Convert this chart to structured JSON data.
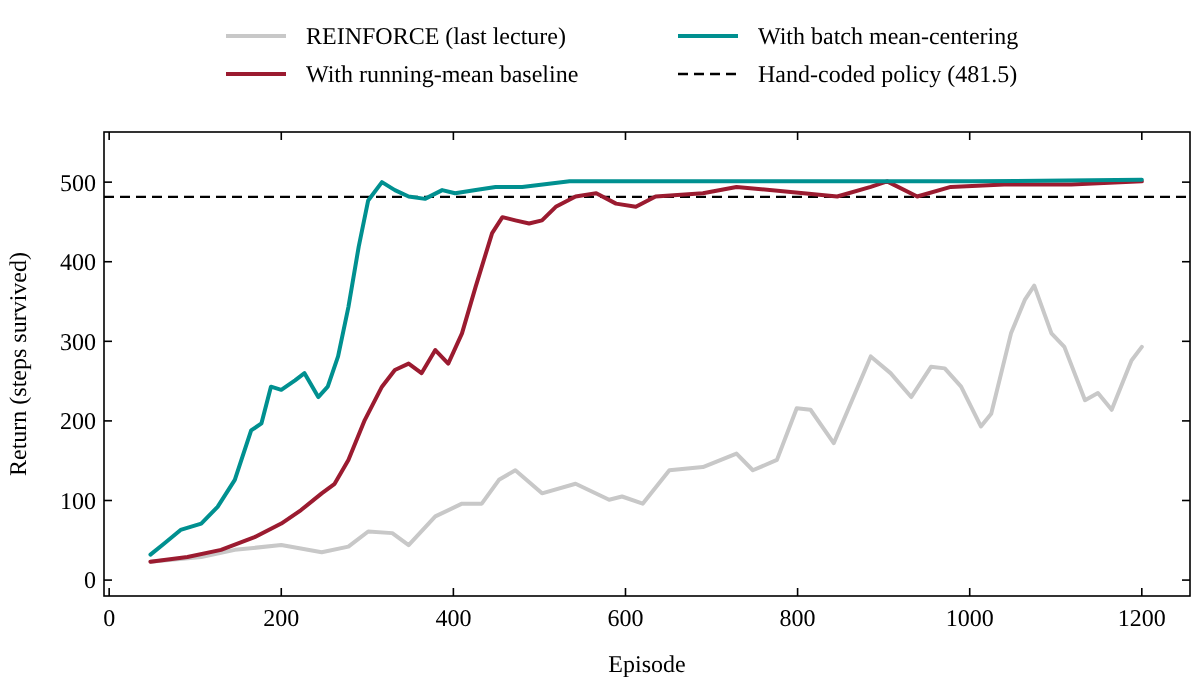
{
  "chart_data": {
    "type": "line",
    "xlabel": "Episode",
    "ylabel": "Return (steps survived)",
    "xlim": [
      -6,
      1256
    ],
    "ylim": [
      -20,
      563
    ],
    "xticks": [
      0,
      200,
      400,
      600,
      800,
      1000,
      1200
    ],
    "yticks": [
      0,
      100,
      200,
      300,
      400,
      500
    ],
    "legend": "top",
    "line_style": "solid",
    "marker": "none",
    "series": [
      {
        "name": "REINFORCE (last lecture)",
        "color": "#c8c8c8",
        "x": [
          48,
          107,
          146,
          200,
          247,
          278,
          301,
          329,
          348,
          379,
          410,
          433,
          453,
          472,
          503,
          542,
          581,
          596,
          620,
          651,
          690,
          729,
          748,
          776,
          799,
          815,
          842,
          885,
          908,
          932,
          955,
          971,
          990,
          1013,
          1025,
          1048,
          1064,
          1075,
          1095,
          1110,
          1134,
          1149,
          1165,
          1188,
          1200
        ],
        "values": [
          23,
          29,
          38,
          44,
          35,
          42,
          61,
          59,
          44,
          80,
          96,
          96,
          126,
          138,
          109,
          121,
          101,
          105,
          96,
          138,
          142,
          159,
          138,
          151,
          216,
          214,
          172,
          281,
          260,
          230,
          268,
          266,
          243,
          193,
          209,
          310,
          352,
          370,
          310,
          293,
          226,
          235,
          214,
          276,
          293
        ]
      },
      {
        "name": "With running-mean baseline",
        "color": "#9b1b30",
        "x": [
          48,
          91,
          130,
          169,
          200,
          223,
          247,
          262,
          278,
          297,
          317,
          332,
          348,
          363,
          379,
          394,
          410,
          426,
          445,
          457,
          472,
          488,
          503,
          519,
          542,
          566,
          589,
          612,
          635,
          690,
          729,
          807,
          846,
          885,
          904,
          939,
          978,
          1040,
          1118,
          1200
        ],
        "values": [
          23,
          29,
          38,
          54,
          71,
          88,
          109,
          121,
          151,
          201,
          243,
          264,
          272,
          260,
          289,
          272,
          310,
          369,
          436,
          456,
          452,
          448,
          452,
          469,
          482,
          486,
          473,
          469,
          482,
          486,
          494,
          486,
          482,
          494,
          501,
          482,
          494,
          497,
          497,
          501
        ]
      },
      {
        "name": "With batch mean-centering",
        "color": "#009090",
        "x": [
          48,
          64,
          83,
          107,
          126,
          146,
          165,
          177,
          188,
          200,
          216,
          227,
          243,
          254,
          266,
          278,
          290,
          301,
          317,
          332,
          348,
          367,
          387,
          402,
          426,
          449,
          480,
          535,
          800,
          1000,
          1200
        ],
        "values": [
          32,
          46,
          63,
          71,
          92,
          126,
          188,
          197,
          243,
          239,
          251,
          260,
          230,
          243,
          281,
          343,
          419,
          477,
          500,
          490,
          482,
          479,
          490,
          486,
          490,
          494,
          494,
          501,
          501,
          501,
          503
        ]
      }
    ],
    "ref_lines": [
      {
        "axis": "y",
        "value": 481.5,
        "label": "Hand-coded policy (481.5)",
        "color": "#000000",
        "line_style": "dashed"
      }
    ]
  }
}
